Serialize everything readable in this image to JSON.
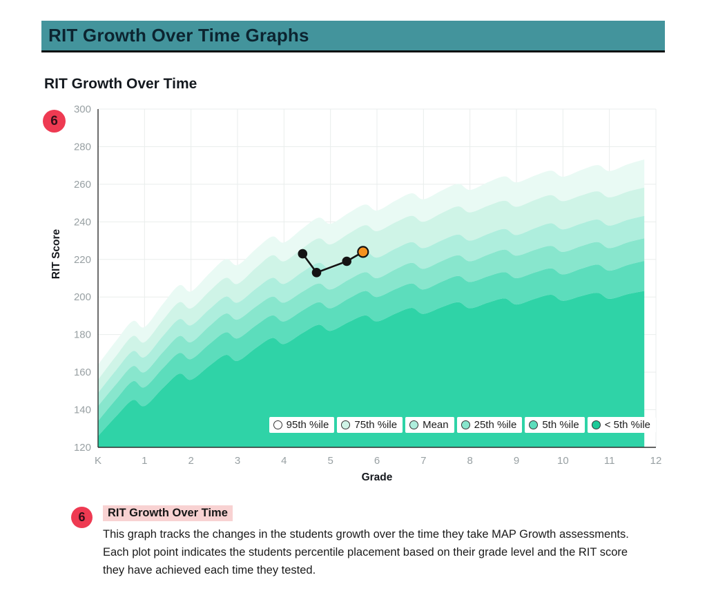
{
  "header": {
    "title": "RIT Growth Over Time Graphs"
  },
  "section": {
    "badge": "6",
    "title": "RIT Growth Over Time"
  },
  "footnote": {
    "badge": "6",
    "title": "RIT Growth Over Time",
    "body": "This graph tracks the changes in the students growth over the time they take MAP Growth assessments. Each plot point indicates the students percentile placement based on their grade level and the RIT score they have achieved each time they tested."
  },
  "colors": {
    "header_bg": "#43949c",
    "badge_bg": "#ee3a52",
    "highlight_bg": "#f8d2d2"
  },
  "chart_data": {
    "type": "area",
    "title": "RIT Growth Over Time",
    "xlabel": "Grade",
    "ylabel": "RIT Score",
    "x_tick_labels": [
      "K",
      "1",
      "2",
      "3",
      "4",
      "5",
      "6",
      "7",
      "8",
      "9",
      "10",
      "11",
      "12"
    ],
    "y_ticks": [
      120,
      140,
      160,
      180,
      200,
      220,
      240,
      260,
      280,
      300
    ],
    "xlim": [
      0,
      12
    ],
    "ylim": [
      120,
      300
    ],
    "grades": [
      0,
      1,
      2,
      3,
      4,
      5,
      6,
      7,
      8,
      9,
      10,
      11,
      12
    ],
    "band_fill_end_grade": 11.75,
    "grid": true,
    "legend_position": "inside-bottom-right",
    "boundaries": [
      {
        "name": "upper_extent",
        "values": [
          164,
          184,
          203,
          217,
          229,
          239,
          246,
          252,
          257,
          261,
          264,
          267,
          270
        ]
      },
      {
        "name": "95th_percentile",
        "values": [
          156,
          176,
          194,
          207,
          219,
          228,
          235,
          240,
          245,
          248,
          251,
          253,
          255
        ]
      },
      {
        "name": "75th_percentile",
        "values": [
          149,
          168,
          185,
          197,
          207,
          215,
          221,
          226,
          230,
          233,
          236,
          238,
          240
        ]
      },
      {
        "name": "mean",
        "values": [
          142,
          160,
          176,
          188,
          197,
          204,
          210,
          215,
          219,
          222,
          224,
          226,
          228
        ]
      },
      {
        "name": "25th_percentile",
        "values": [
          134,
          152,
          167,
          178,
          187,
          194,
          200,
          204,
          208,
          210,
          212,
          214,
          216
        ]
      },
      {
        "name": "5th_percentile",
        "values": [
          126,
          142,
          156,
          166,
          175,
          182,
          187,
          191,
          194,
          196,
          198,
          199,
          200
        ]
      }
    ],
    "bands": [
      {
        "label": "95th %ile",
        "color": "#e9faf4"
      },
      {
        "label": "75th %ile",
        "color": "#cff4e7"
      },
      {
        "label": "Mean",
        "color": "#aeeedd"
      },
      {
        "label": "25th %ile",
        "color": "#88e6cd"
      },
      {
        "label": "5th %ile",
        "color": "#5cddbc"
      },
      {
        "label": "< 5th %ile",
        "color": "#2fd3a7"
      }
    ],
    "legend": [
      {
        "label": "95th %ile",
        "color": "#ffffff"
      },
      {
        "label": "75th %ile",
        "color": "#cff4e7"
      },
      {
        "label": "Mean",
        "color": "#aeeedd"
      },
      {
        "label": "25th %ile",
        "color": "#88e6cd"
      },
      {
        "label": "5th %ile",
        "color": "#5cddbc"
      },
      {
        "label": "< 5th %ile",
        "color": "#1ec998"
      }
    ],
    "student_series": {
      "name": "Student RIT scores",
      "points": [
        {
          "grade": 4.4,
          "rit": 223
        },
        {
          "grade": 4.7,
          "rit": 213
        },
        {
          "grade": 5.35,
          "rit": 219
        },
        {
          "grade": 5.7,
          "rit": 224,
          "latest": true
        }
      ],
      "line_color": "#141414",
      "point_color": "#141414",
      "latest_point_color": "#f6921e"
    }
  }
}
